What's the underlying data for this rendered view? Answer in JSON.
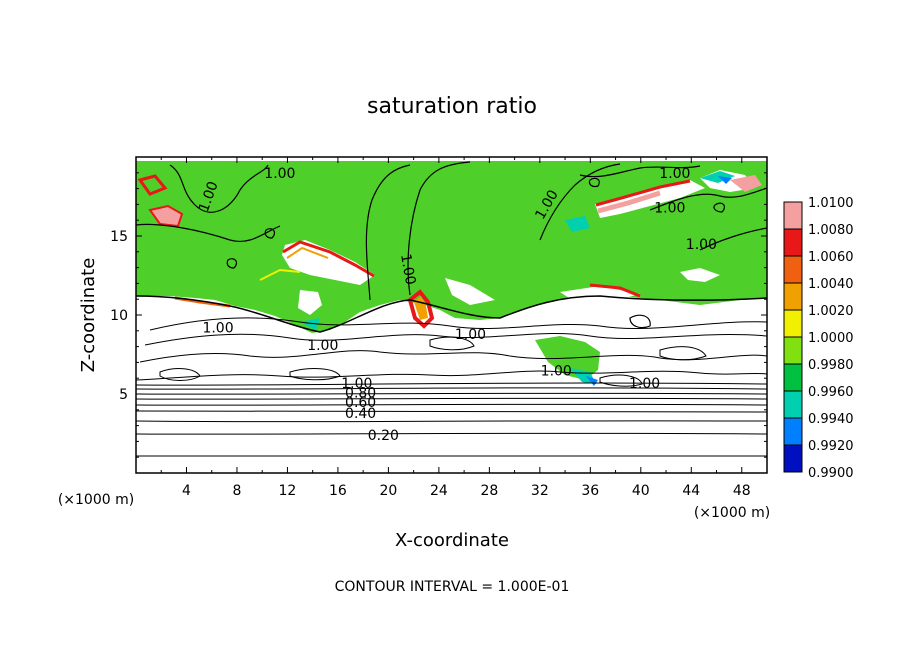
{
  "chart_data": {
    "type": "heatmap",
    "title": "saturation ratio",
    "xlabel": "X-coordinate",
    "ylabel": "Z-coordinate",
    "x_units": "(×1000 m)",
    "y_units": "(×1000 m)",
    "xlim": [
      0,
      50
    ],
    "ylim": [
      0,
      20
    ],
    "x_ticks": [
      4,
      8,
      12,
      16,
      20,
      24,
      28,
      32,
      36,
      40,
      44,
      48
    ],
    "y_ticks": [
      5,
      10,
      15
    ],
    "footer": "CONTOUR INTERVAL = 1.000E-01",
    "colorbar": {
      "levels": [
        "1.0100",
        "1.0080",
        "1.0060",
        "1.0040",
        "1.0020",
        "1.0000",
        "0.9980",
        "0.9960",
        "0.9940",
        "0.9920",
        "0.9900"
      ],
      "colors": [
        "#f4a0a0",
        "#e81818",
        "#f06010",
        "#f0a000",
        "#f0f000",
        "#80e010",
        "#00c040",
        "#00d0b0",
        "#0080ff",
        "#0010c0",
        "#602090"
      ]
    },
    "contour_labels": [
      {
        "text": "0.20",
        "x": 19.6,
        "y": 2.4
      },
      {
        "text": "0.40",
        "x": 17.8,
        "y": 3.8
      },
      {
        "text": "0.60",
        "x": 17.8,
        "y": 4.5
      },
      {
        "text": "0.80",
        "x": 17.8,
        "y": 5.1
      },
      {
        "text": "1.00",
        "x": 17.5,
        "y": 5.7
      },
      {
        "text": "1.00",
        "x": 6.5,
        "y": 9.2
      },
      {
        "text": "1.00",
        "x": 14.8,
        "y": 8.1
      },
      {
        "text": "1.00",
        "x": 26.5,
        "y": 8.8
      },
      {
        "text": "1.00",
        "x": 40.3,
        "y": 5.7
      },
      {
        "text": "1.00",
        "x": 44.8,
        "y": 14.5
      },
      {
        "text": "1.00",
        "x": 42.3,
        "y": 16.8
      },
      {
        "text": "1.00",
        "x": 42.7,
        "y": 19.0
      },
      {
        "text": "1.00",
        "x": 11.4,
        "y": 19.0
      },
      {
        "text": "1.00",
        "x": 33.3,
        "y": 6.5
      }
    ],
    "rotated_contour_labels": [
      {
        "text": "1.00",
        "x": 5.7,
        "y": 17.5,
        "angle": -70
      },
      {
        "text": "1.00",
        "x": 21.6,
        "y": 12.9,
        "angle": 80
      },
      {
        "text": "1.00",
        "x": 32.5,
        "y": 17.0,
        "angle": -60
      }
    ]
  }
}
